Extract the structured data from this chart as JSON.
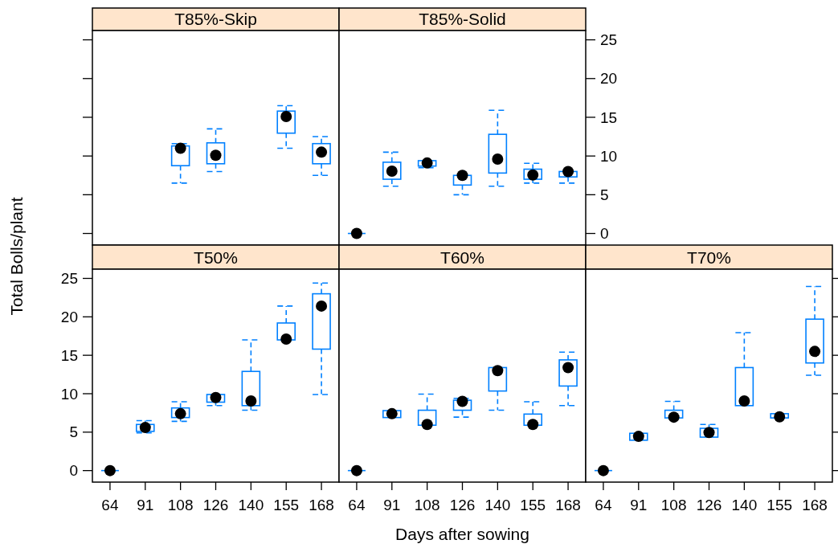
{
  "chart_data": [
    {
      "type": "box",
      "title": "T85%-Skip",
      "categories": [
        "64",
        "91",
        "108",
        "126",
        "140",
        "155",
        "168"
      ],
      "color": "#0080ff",
      "ylim": [
        -1.5,
        26.2
      ],
      "yticks": [
        0,
        5,
        10,
        15,
        20,
        25
      ],
      "tick_labels": false,
      "marker": "circle",
      "boxes": [
        null,
        null,
        {
          "low": 6.5,
          "q1": 8.75,
          "median": 11.0,
          "q3": 11.3,
          "high": 11.6
        },
        {
          "low": 8.0,
          "q1": 9.0,
          "median": 10.1,
          "q3": 11.7,
          "high": 13.5
        },
        null,
        {
          "low": 11.0,
          "q1": 12.95,
          "median": 15.1,
          "q3": 15.8,
          "high": 16.5
        },
        {
          "low": 7.5,
          "q1": 9.0,
          "median": 10.5,
          "q3": 11.6,
          "high": 12.5
        }
      ],
      "series": [
        {
          "type": "scatter",
          "color": "#000000",
          "x": [
            "64",
            "91",
            "108",
            "126",
            "140",
            "155",
            "168"
          ],
          "values": [
            null,
            null,
            11.0,
            10.1,
            null,
            15.1,
            10.5
          ]
        }
      ]
    },
    {
      "type": "box",
      "title": "T85%-Solid",
      "categories": [
        "64",
        "91",
        "108",
        "126",
        "140",
        "155",
        "168"
      ],
      "color": "#0080ff",
      "ylim": [
        -1.5,
        26.2
      ],
      "yticks": [
        0,
        5,
        10,
        15,
        20,
        25
      ],
      "tick_labels": "y",
      "marker": "circle",
      "boxes": [
        {
          "low": 0,
          "q1": 0,
          "median": 0,
          "q3": 0,
          "high": 0
        },
        {
          "low": 6.1,
          "q1": 7.0,
          "median": 8.05,
          "q3": 9.2,
          "high": 10.5
        },
        {
          "low": 8.5,
          "q1": 8.7,
          "median": 9.1,
          "q3": 9.4,
          "high": 9.4
        },
        {
          "low": 5.0,
          "q1": 6.25,
          "median": 7.5,
          "q3": 7.5,
          "high": 7.5
        },
        {
          "low": 6.1,
          "q1": 7.8,
          "median": 9.6,
          "q3": 12.8,
          "high": 15.9
        },
        {
          "low": 6.5,
          "q1": 7.0,
          "median": 7.55,
          "q3": 8.3,
          "high": 9.05
        },
        {
          "low": 6.5,
          "q1": 7.3,
          "median": 8.0,
          "q3": 8.0,
          "high": 8.0
        }
      ],
      "series": [
        {
          "type": "scatter",
          "color": "#000000",
          "x": [
            "64",
            "91",
            "108",
            "126",
            "140",
            "155",
            "168"
          ],
          "values": [
            0,
            8.05,
            9.1,
            7.5,
            9.6,
            7.55,
            8.0
          ]
        }
      ]
    },
    {
      "type": "box",
      "title": "T50%",
      "ylabel": "Total Bolls/plant",
      "categories": [
        "64",
        "91",
        "108",
        "126",
        "140",
        "155",
        "168"
      ],
      "color": "#0080ff",
      "ylim": [
        -1.5,
        26.2
      ],
      "yticks": [
        0,
        5,
        10,
        15,
        20,
        25
      ],
      "marker": "circle",
      "boxes": [
        {
          "low": 0,
          "q1": 0,
          "median": 0,
          "q3": 0,
          "high": 0
        },
        {
          "low": 4.9,
          "q1": 5.1,
          "median": 5.6,
          "q3": 6.0,
          "high": 6.5
        },
        {
          "low": 6.4,
          "q1": 6.9,
          "median": 7.4,
          "q3": 8.15,
          "high": 8.95
        },
        {
          "low": 8.45,
          "q1": 8.9,
          "median": 9.5,
          "q3": 9.9,
          "high": 9.9
        },
        {
          "low": 7.85,
          "q1": 8.45,
          "median": 9.05,
          "q3": 12.9,
          "high": 17.0
        },
        {
          "low": 17.0,
          "q1": 17.0,
          "median": 17.1,
          "q3": 19.2,
          "high": 21.4
        },
        {
          "low": 9.9,
          "q1": 15.8,
          "median": 21.4,
          "q3": 23.0,
          "high": 24.4
        }
      ],
      "series": [
        {
          "type": "scatter",
          "color": "#000000",
          "x": [
            "64",
            "91",
            "108",
            "126",
            "140",
            "155",
            "168"
          ],
          "values": [
            0,
            5.6,
            7.4,
            9.5,
            9.05,
            17.1,
            21.4
          ]
        }
      ]
    },
    {
      "type": "box",
      "title": "T60%",
      "xlabel": "Days after sowing",
      "categories": [
        "64",
        "91",
        "108",
        "126",
        "140",
        "155",
        "168"
      ],
      "color": "#0080ff",
      "ylim": [
        -1.5,
        26.2
      ],
      "yticks": [
        0,
        5,
        10,
        15,
        20,
        25
      ],
      "tick_labels": "x",
      "marker": "circle",
      "boxes": [
        {
          "low": 0,
          "q1": 0,
          "median": 0,
          "q3": 0,
          "high": 0
        },
        {
          "low": 6.9,
          "q1": 6.9,
          "median": 7.4,
          "q3": 7.8,
          "high": 7.8
        },
        {
          "low": 5.9,
          "q1": 5.9,
          "median": 6.0,
          "q3": 7.85,
          "high": 9.95
        },
        {
          "low": 6.95,
          "q1": 7.85,
          "median": 9.0,
          "q3": 9.15,
          "high": 9.4
        },
        {
          "low": 7.85,
          "q1": 10.35,
          "median": 13.0,
          "q3": 13.4,
          "high": 13.4
        },
        {
          "low": 5.9,
          "q1": 5.9,
          "median": 6.0,
          "q3": 7.35,
          "high": 8.95
        },
        {
          "low": 8.45,
          "q1": 11.0,
          "median": 13.4,
          "q3": 14.4,
          "high": 15.4
        }
      ],
      "series": [
        {
          "type": "scatter",
          "color": "#000000",
          "x": [
            "64",
            "91",
            "108",
            "126",
            "140",
            "155",
            "168"
          ],
          "values": [
            0,
            7.4,
            6.0,
            9.0,
            13.0,
            6.0,
            13.4
          ]
        }
      ]
    },
    {
      "type": "box",
      "title": "T70%",
      "categories": [
        "64",
        "91",
        "108",
        "126",
        "140",
        "155",
        "168"
      ],
      "color": "#0080ff",
      "ylim": [
        -1.5,
        26.2
      ],
      "yticks": [
        0,
        5,
        10,
        15,
        20,
        25
      ],
      "tick_labels": "x",
      "marker": "circle",
      "boxes": [
        {
          "low": 0,
          "q1": 0,
          "median": 0,
          "q3": 0,
          "high": 0
        },
        {
          "low": 3.95,
          "q1": 3.95,
          "median": 4.45,
          "q3": 4.85,
          "high": 4.85
        },
        {
          "low": 6.85,
          "q1": 6.85,
          "median": 6.95,
          "q3": 7.85,
          "high": 9.0
        },
        {
          "low": 4.35,
          "q1": 4.35,
          "median": 4.95,
          "q3": 5.5,
          "high": 6.0
        },
        {
          "low": 8.45,
          "q1": 8.45,
          "median": 9.05,
          "q3": 13.4,
          "high": 17.95
        },
        {
          "low": 6.85,
          "q1": 6.85,
          "median": 7.0,
          "q3": 7.4,
          "high": 7.4
        },
        {
          "low": 12.4,
          "q1": 14.0,
          "median": 15.5,
          "q3": 19.7,
          "high": 23.95
        }
      ],
      "series": [
        {
          "type": "scatter",
          "color": "#000000",
          "x": [
            "64",
            "91",
            "108",
            "126",
            "140",
            "155",
            "168"
          ],
          "values": [
            0,
            4.45,
            6.95,
            4.95,
            9.05,
            7.0,
            15.5
          ]
        }
      ]
    }
  ]
}
